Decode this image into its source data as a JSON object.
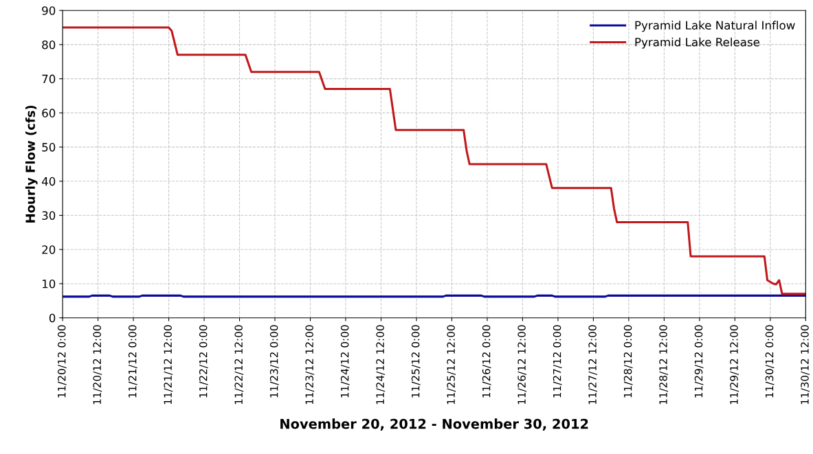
{
  "chart_data": {
    "type": "line",
    "xlabel": "November 20, 2012 - November 30, 2012",
    "ylabel": "Hourly Flow (cfs)",
    "xlim": [
      "2012-11-20T00:00",
      "2012-11-30T12:00"
    ],
    "ylim": [
      0,
      90
    ],
    "yticks": [
      0,
      10,
      20,
      30,
      40,
      50,
      60,
      70,
      80,
      90
    ],
    "xticks": [
      {
        "value": "2012-11-20T00:00",
        "label": "11/20/12 0:00"
      },
      {
        "value": "2012-11-20T12:00",
        "label": "11/20/12 12:00"
      },
      {
        "value": "2012-11-21T00:00",
        "label": "11/21/12 0:00"
      },
      {
        "value": "2012-11-21T12:00",
        "label": "11/21/12 12:00"
      },
      {
        "value": "2012-11-22T00:00",
        "label": "11/22/12 0:00"
      },
      {
        "value": "2012-11-22T12:00",
        "label": "11/22/12 12:00"
      },
      {
        "value": "2012-11-23T00:00",
        "label": "11/23/12 0:00"
      },
      {
        "value": "2012-11-23T12:00",
        "label": "11/23/12 12:00"
      },
      {
        "value": "2012-11-24T00:00",
        "label": "11/24/12 0:00"
      },
      {
        "value": "2012-11-24T12:00",
        "label": "11/24/12 12:00"
      },
      {
        "value": "2012-11-25T00:00",
        "label": "11/25/12 0:00"
      },
      {
        "value": "2012-11-25T12:00",
        "label": "11/25/12 12:00"
      },
      {
        "value": "2012-11-26T00:00",
        "label": "11/26/12 0:00"
      },
      {
        "value": "2012-11-26T12:00",
        "label": "11/26/12 12:00"
      },
      {
        "value": "2012-11-27T00:00",
        "label": "11/27/12 0:00"
      },
      {
        "value": "2012-11-27T12:00",
        "label": "11/27/12 12:00"
      },
      {
        "value": "2012-11-28T00:00",
        "label": "11/28/12 0:00"
      },
      {
        "value": "2012-11-28T12:00",
        "label": "11/28/12 12:00"
      },
      {
        "value": "2012-11-29T00:00",
        "label": "11/29/12 0:00"
      },
      {
        "value": "2012-11-29T12:00",
        "label": "11/29/12 12:00"
      },
      {
        "value": "2012-11-30T00:00",
        "label": "11/30/12 0:00"
      },
      {
        "value": "2012-11-30T12:00",
        "label": "11/30/12 12:00"
      }
    ],
    "grid": true,
    "legend": "top right",
    "marker": "none",
    "line_style": "solid",
    "series": [
      {
        "name": "Pyramid Lake Natural Inflow",
        "color": "#0a0a9a",
        "x": [
          "2012-11-20T00:00",
          "2012-11-20T09:00",
          "2012-11-20T10:00",
          "2012-11-20T16:00",
          "2012-11-20T17:00",
          "2012-11-21T02:00",
          "2012-11-21T03:00",
          "2012-11-21T16:00",
          "2012-11-21T17:00",
          "2012-11-25T09:00",
          "2012-11-25T10:00",
          "2012-11-25T22:00",
          "2012-11-25T23:00",
          "2012-11-26T16:00",
          "2012-11-26T17:00",
          "2012-11-26T22:00",
          "2012-11-26T23:00",
          "2012-11-27T16:00",
          "2012-11-27T17:00",
          "2012-11-30T12:00"
        ],
        "values": [
          6.2,
          6.2,
          6.5,
          6.5,
          6.2,
          6.2,
          6.5,
          6.5,
          6.2,
          6.2,
          6.5,
          6.5,
          6.2,
          6.2,
          6.5,
          6.5,
          6.2,
          6.2,
          6.5,
          6.5
        ]
      },
      {
        "name": "Pyramid Lake Release",
        "color": "#c0181c",
        "x": [
          "2012-11-20T00:00",
          "2012-11-21T12:00",
          "2012-11-21T13:00",
          "2012-11-21T15:00",
          "2012-11-22T14:00",
          "2012-11-22T16:00",
          "2012-11-23T15:00",
          "2012-11-23T17:00",
          "2012-11-24T15:00",
          "2012-11-24T17:00",
          "2012-11-25T16:00",
          "2012-11-25T17:00",
          "2012-11-25T18:00",
          "2012-11-26T20:00",
          "2012-11-26T22:00",
          "2012-11-27T18:00",
          "2012-11-27T19:00",
          "2012-11-27T20:00",
          "2012-11-28T20:00",
          "2012-11-28T21:00",
          "2012-11-29T22:00",
          "2012-11-29T23:00",
          "2012-11-30T01:00",
          "2012-11-30T02:00",
          "2012-11-30T03:00",
          "2012-11-30T04:00",
          "2012-11-30T12:00"
        ],
        "values": [
          85,
          85,
          84,
          77,
          77,
          72,
          72,
          67,
          67,
          55,
          55,
          49,
          45,
          45,
          38,
          38,
          32,
          28,
          28,
          18,
          18,
          11,
          10,
          9.8,
          11,
          7,
          7
        ]
      }
    ]
  }
}
